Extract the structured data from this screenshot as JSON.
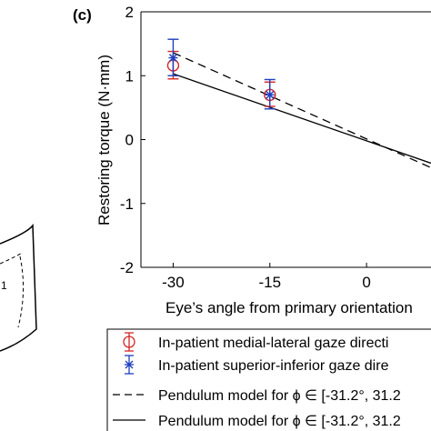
{
  "panel_label": "(c)",
  "left_fragment": {
    "label": "1"
  },
  "chart_data": {
    "type": "scatter",
    "xlabel": "Eye’s angle from primary orientation",
    "ylabel": "Restoring torque (N·mm)",
    "xlim": [
      -35,
      10
    ],
    "ylim": [
      -2,
      2
    ],
    "xticks": [
      "-30",
      "-15",
      "0"
    ],
    "yticks": [
      "-2",
      "-1",
      "0",
      "1",
      "2"
    ],
    "grid": false,
    "legend_position": "bottom",
    "series": [
      {
        "name": "In-patient medial-lateral gaze directi",
        "marker": "circle",
        "color": "#d62728",
        "x": [
          -30,
          -15
        ],
        "y": [
          1.16,
          0.7
        ],
        "err_low": [
          0.95,
          0.52
        ],
        "err_high": [
          1.38,
          0.9
        ]
      },
      {
        "name": "In-patient superior-inferior gaze dire",
        "marker": "star",
        "color": "#1f3fbf",
        "x": [
          -30,
          -15
        ],
        "y": [
          1.28,
          0.7
        ],
        "err_low": [
          1.0,
          0.48
        ],
        "err_high": [
          1.57,
          0.94
        ]
      },
      {
        "name": "Pendulum model for ϕ ∈ [-31.2°, 31.2",
        "style": "dashed",
        "color": "#000000",
        "x": [
          -30,
          10
        ],
        "y": [
          1.36,
          -0.44
        ]
      },
      {
        "name": "Pendulum model for ϕ ∈ [-31.2°, 31.2",
        "style": "solid",
        "color": "#000000",
        "x": [
          -30,
          10
        ],
        "y": [
          1.03,
          -0.37
        ]
      }
    ]
  }
}
